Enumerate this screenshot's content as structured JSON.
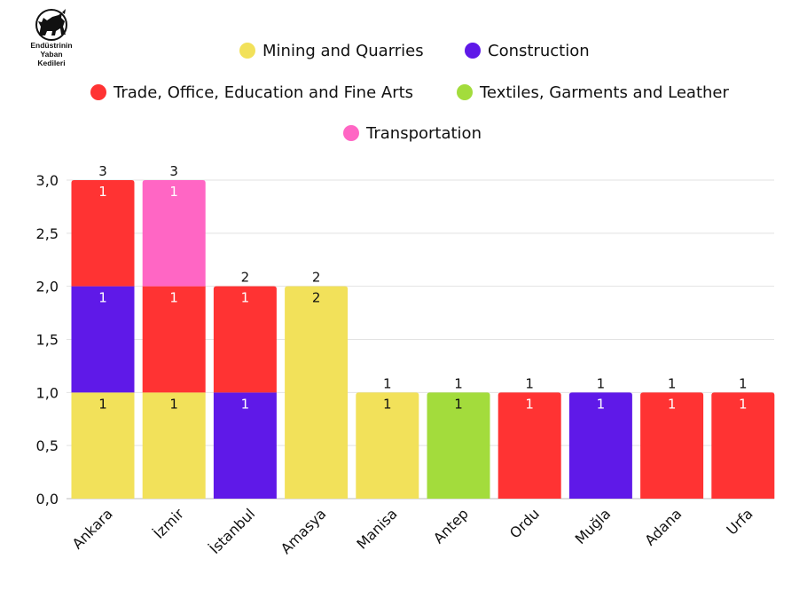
{
  "logo": {
    "lines": [
      "Endüstrinin",
      "Yaban",
      "Kedileri"
    ]
  },
  "chart_data": {
    "type": "bar",
    "stacked": true,
    "categories": [
      "Ankara",
      "İzmir",
      "İstanbul",
      "Amasya",
      "Manisa",
      "Antep",
      "Ordu",
      "Muğla",
      "Adana",
      "Urfa"
    ],
    "series": [
      {
        "name": "Mining and Quarries",
        "color": "#f2e15a",
        "values": [
          1,
          1,
          0,
          2,
          1,
          0,
          0,
          0,
          0,
          0
        ]
      },
      {
        "name": "Construction",
        "color": "#5f19e8",
        "values": [
          1,
          0,
          1,
          0,
          0,
          0,
          0,
          1,
          0,
          0
        ]
      },
      {
        "name": "Trade, Office, Education and Fine Arts",
        "color": "#ff3333",
        "values": [
          1,
          1,
          1,
          0,
          0,
          0,
          1,
          0,
          1,
          1
        ]
      },
      {
        "name": "Textiles, Garments and Leather",
        "color": "#a3dc3c",
        "values": [
          0,
          0,
          0,
          0,
          0,
          1,
          0,
          0,
          0,
          0
        ]
      },
      {
        "name": "Transportation",
        "color": "#ff66c4",
        "values": [
          0,
          1,
          0,
          0,
          0,
          0,
          0,
          0,
          0,
          0
        ]
      }
    ],
    "totals": [
      3,
      3,
      2,
      2,
      1,
      1,
      1,
      1,
      1,
      1
    ],
    "yticks": [
      "0,0",
      "0,5",
      "1,0",
      "1,5",
      "2,0",
      "2,5",
      "3,0"
    ],
    "ylim": [
      0,
      3
    ],
    "grid": true,
    "legend_position": "top"
  }
}
